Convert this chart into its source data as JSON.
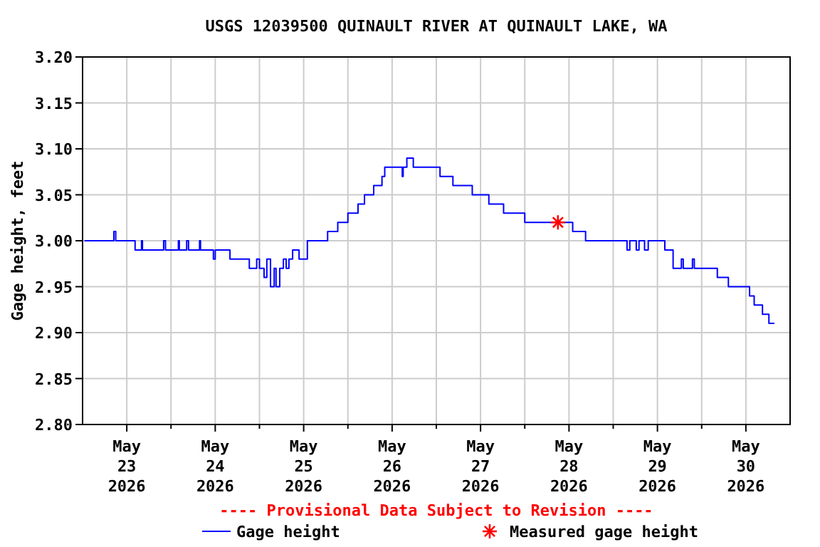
{
  "chart_data": {
    "type": "step",
    "title": "USGS 12039500 QUINAULT RIVER AT QUINAULT LAKE, WA",
    "ylabel": "Gage height, feet",
    "xlim": [
      "2026-05-22T12:00",
      "2026-05-30T12:00"
    ],
    "xticks": [
      {
        "value": "2026-05-23T00:00",
        "label": "May\n23\n2026"
      },
      {
        "value": "2026-05-23T12:00",
        "label": null
      },
      {
        "value": "2026-05-24T00:00",
        "label": "May\n24\n2026"
      },
      {
        "value": "2026-05-24T12:00",
        "label": null
      },
      {
        "value": "2026-05-25T00:00",
        "label": "May\n25\n2026"
      },
      {
        "value": "2026-05-25T12:00",
        "label": null
      },
      {
        "value": "2026-05-26T00:00",
        "label": "May\n26\n2026"
      },
      {
        "value": "2026-05-26T12:00",
        "label": null
      },
      {
        "value": "2026-05-27T00:00",
        "label": "May\n27\n2026"
      },
      {
        "value": "2026-05-27T12:00",
        "label": null
      },
      {
        "value": "2026-05-28T00:00",
        "label": "May\n28\n2026"
      },
      {
        "value": "2026-05-28T12:00",
        "label": null
      },
      {
        "value": "2026-05-29T00:00",
        "label": "May\n29\n2026"
      },
      {
        "value": "2026-05-29T12:00",
        "label": null
      },
      {
        "value": "2026-05-30T00:00",
        "label": "May\n30\n2026"
      }
    ],
    "ylim": [
      2.8,
      3.2
    ],
    "yticks": [
      {
        "value": 2.8,
        "label": "2.80"
      },
      {
        "value": 2.85,
        "label": "2.85"
      },
      {
        "value": 2.9,
        "label": "2.90"
      },
      {
        "value": 2.95,
        "label": "2.95"
      },
      {
        "value": 3.0,
        "label": "3.00"
      },
      {
        "value": 3.05,
        "label": "3.05"
      },
      {
        "value": 3.1,
        "label": "3.10"
      },
      {
        "value": 3.15,
        "label": "3.15"
      },
      {
        "value": 3.2,
        "label": "3.20"
      }
    ],
    "grid": true,
    "legend": "bottom",
    "annotations": [
      "---- Provisional Data Subject to Revision ----"
    ],
    "series": [
      {
        "name": "Gage height",
        "color": "#0000ff",
        "marker": "none",
        "x": [
          "2026-05-22T12:30",
          "2026-05-22T20:30",
          "2026-05-22T21:00",
          "2026-05-23T02:15",
          "2026-05-23T04:00",
          "2026-05-23T04:15",
          "2026-05-23T10:00",
          "2026-05-23T10:30",
          "2026-05-23T14:00",
          "2026-05-23T14:15",
          "2026-05-23T16:15",
          "2026-05-23T16:45",
          "2026-05-23T19:45",
          "2026-05-23T20:00",
          "2026-05-23T23:30",
          "2026-05-24T00:00",
          "2026-05-24T04:00",
          "2026-05-24T09:15",
          "2026-05-24T11:15",
          "2026-05-24T12:00",
          "2026-05-24T13:15",
          "2026-05-24T14:00",
          "2026-05-24T15:00",
          "2026-05-24T16:00",
          "2026-05-24T16:30",
          "2026-05-24T17:30",
          "2026-05-24T18:30",
          "2026-05-24T19:15",
          "2026-05-24T20:00",
          "2026-05-24T21:00",
          "2026-05-24T22:45",
          "2026-05-25T01:00",
          "2026-05-25T06:30",
          "2026-05-25T09:15",
          "2026-05-25T12:00",
          "2026-05-25T14:45",
          "2026-05-25T16:30",
          "2026-05-25T19:00",
          "2026-05-25T21:15",
          "2026-05-25T22:00",
          "2026-05-26T02:45",
          "2026-05-26T03:00",
          "2026-05-26T04:00",
          "2026-05-26T05:45",
          "2026-05-26T13:00",
          "2026-05-26T16:30",
          "2026-05-26T21:45",
          "2026-05-27T02:15",
          "2026-05-27T06:15",
          "2026-05-27T12:00",
          "2026-05-28T01:00",
          "2026-05-28T04:30",
          "2026-05-28T15:45",
          "2026-05-28T16:30",
          "2026-05-28T18:15",
          "2026-05-28T19:00",
          "2026-05-28T20:30",
          "2026-05-28T21:30",
          "2026-05-29T02:00",
          "2026-05-29T04:15",
          "2026-05-29T06:30",
          "2026-05-29T07:00",
          "2026-05-29T09:30",
          "2026-05-29T10:00",
          "2026-05-29T16:15",
          "2026-05-29T19:15",
          "2026-05-30T01:00",
          "2026-05-30T02:15",
          "2026-05-30T04:30",
          "2026-05-30T06:15",
          "2026-05-30T07:45"
        ],
        "values": [
          3.0,
          3.01,
          3.0,
          2.99,
          3.0,
          2.99,
          3.0,
          2.99,
          3.0,
          2.99,
          3.0,
          2.99,
          3.0,
          2.99,
          2.98,
          2.99,
          2.98,
          2.97,
          2.98,
          2.97,
          2.96,
          2.98,
          2.95,
          2.97,
          2.95,
          2.97,
          2.98,
          2.97,
          2.98,
          2.99,
          2.98,
          3.0,
          3.01,
          3.02,
          3.03,
          3.04,
          3.05,
          3.06,
          3.07,
          3.08,
          3.07,
          3.08,
          3.09,
          3.08,
          3.07,
          3.06,
          3.05,
          3.04,
          3.03,
          3.02,
          3.01,
          3.0,
          2.99,
          3.0,
          2.99,
          3.0,
          2.99,
          3.0,
          2.99,
          2.97,
          2.98,
          2.97,
          2.98,
          2.97,
          2.96,
          2.95,
          2.94,
          2.93,
          2.92,
          2.91,
          2.91
        ]
      },
      {
        "name": "Measured gage height",
        "type": "scatter",
        "color": "#ff0000",
        "marker": "cross",
        "x": [
          "2026-05-27T21:00"
        ],
        "values": [
          3.02
        ]
      }
    ]
  }
}
